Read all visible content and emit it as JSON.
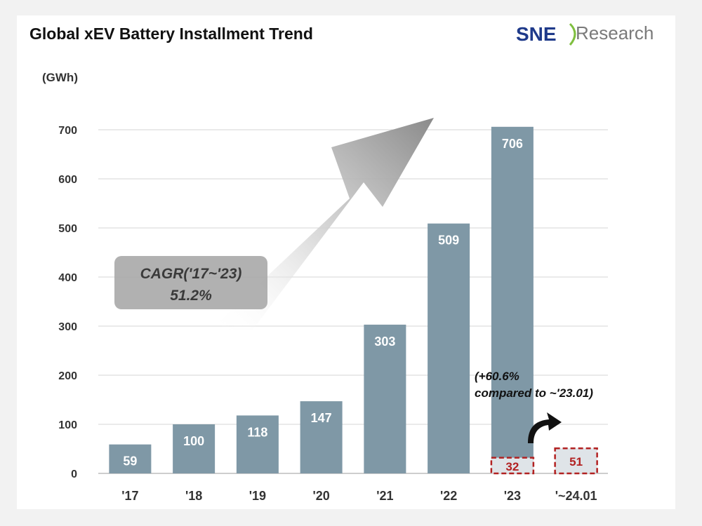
{
  "header": {
    "title": "Global xEV Battery Installment Trend",
    "logo_prefix": "SNE",
    "logo_suffix": "Research"
  },
  "chart_data": {
    "type": "bar",
    "unit_label": "(GWh)",
    "categories": [
      "'17",
      "'18",
      "'19",
      "'20",
      "'21",
      "'22",
      "'23",
      "'~24.01"
    ],
    "values": [
      59,
      100,
      118,
      147,
      303,
      509,
      706,
      null
    ],
    "value_labels": [
      "59",
      "100",
      "118",
      "147",
      "303",
      "509",
      "706",
      ""
    ],
    "ylim": [
      0,
      700
    ],
    "yticks": [
      0,
      100,
      200,
      300,
      400,
      500,
      600,
      700
    ],
    "ytick_labels": [
      "0",
      "100",
      "200",
      "300",
      "400",
      "500",
      "600",
      "700"
    ],
    "grid": true,
    "monthly_comparison": {
      "categories": [
        "'23",
        "'~24.01"
      ],
      "values": [
        32,
        51
      ],
      "value_labels": [
        "32",
        "51"
      ]
    },
    "annotations": {
      "cagr_line1": "CAGR('17~'23)",
      "cagr_line2": "51.2%",
      "note_line1": "(+60.6%",
      "note_line2": "compared to ~'23.01)"
    },
    "colors": {
      "bar": "#7f98a6",
      "monthly_fill": "#dfe4e8",
      "monthly_border": "#b22222",
      "grid": "#d4d4d4"
    }
  }
}
